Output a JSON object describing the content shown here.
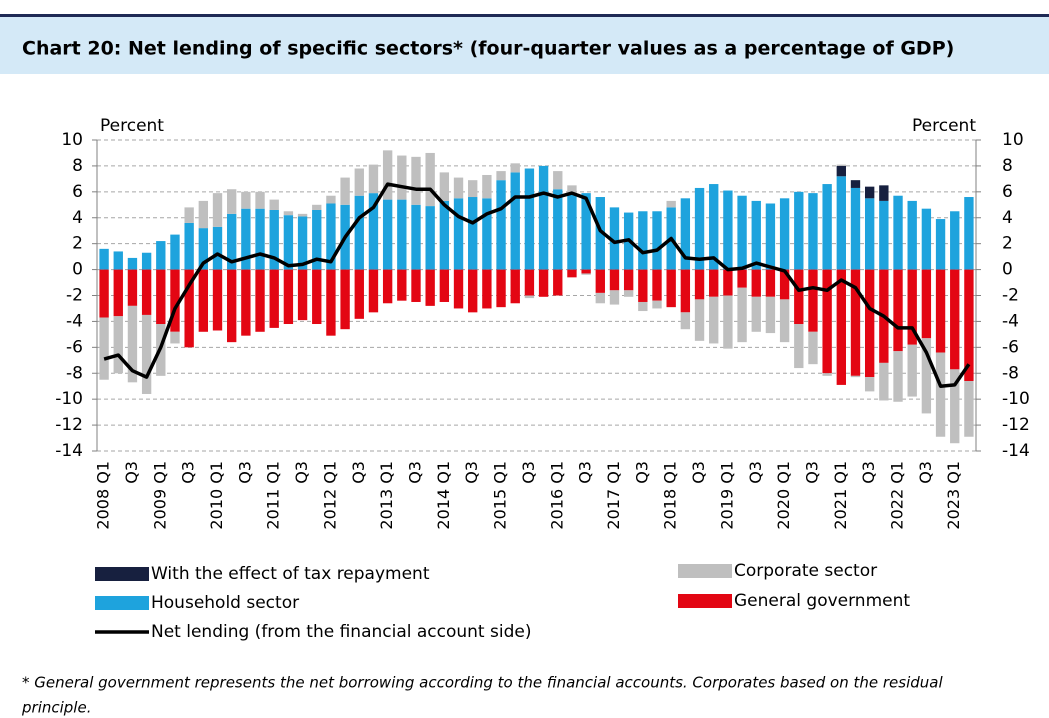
{
  "chart_data": {
    "type": "bar",
    "title": "Chart 20: Net lending of specific sectors* (four-quarter values as a percentage of GDP)",
    "y_label": "Percent",
    "y2_label": "Percent",
    "categories": [
      "2008 Q1",
      null,
      "Q3",
      null,
      "2009 Q1",
      null,
      "Q3",
      null,
      "2010 Q1",
      null,
      "Q3",
      null,
      "2011 Q1",
      null,
      "Q3",
      null,
      "2012 Q1",
      null,
      "Q3",
      null,
      "2013 Q1",
      null,
      "Q3",
      null,
      "2014 Q1",
      null,
      "Q3",
      null,
      "2015 Q1",
      null,
      "Q3",
      null,
      "2016 Q1",
      null,
      "Q3",
      null,
      "2017 Q1",
      null,
      "Q3",
      null,
      "2018 Q1",
      null,
      "Q3",
      null,
      "2019 Q1",
      null,
      "Q3",
      null,
      "2020 Q1",
      null,
      "Q3",
      null,
      "2021 Q1",
      null,
      "Q3",
      null,
      "2022 Q1",
      null,
      "Q3",
      null,
      "2023 Q1",
      null
    ],
    "series": [
      {
        "name": "With the effect of tax repayment",
        "color": "#17203f",
        "values": [
          null,
          null,
          null,
          null,
          null,
          null,
          null,
          null,
          null,
          null,
          null,
          null,
          null,
          null,
          null,
          null,
          null,
          null,
          null,
          null,
          null,
          null,
          null,
          null,
          null,
          null,
          null,
          null,
          null,
          null,
          null,
          null,
          null,
          null,
          null,
          null,
          null,
          null,
          null,
          null,
          null,
          null,
          null,
          null,
          null,
          null,
          null,
          null,
          null,
          null,
          null,
          null,
          0.8,
          0.6,
          0.9,
          1.2,
          null,
          null,
          null,
          null,
          null,
          null
        ]
      },
      {
        "name": "Household sector",
        "color": "#1ea3dd",
        "values": [
          1.6,
          1.4,
          0.9,
          1.3,
          2.2,
          2.7,
          3.6,
          3.2,
          3.3,
          4.3,
          4.7,
          4.7,
          4.6,
          4.2,
          4.1,
          4.6,
          5.1,
          5.0,
          5.7,
          5.9,
          5.4,
          5.4,
          5.0,
          4.9,
          5.3,
          5.5,
          5.6,
          5.5,
          6.9,
          7.5,
          7.8,
          8.0,
          6.2,
          5.8,
          5.9,
          5.6,
          4.8,
          4.4,
          4.5,
          4.5,
          4.8,
          5.5,
          6.3,
          6.6,
          6.1,
          5.7,
          5.3,
          5.1,
          5.5,
          6.0,
          5.9,
          6.6,
          7.2,
          6.3,
          5.5,
          5.3,
          5.7,
          5.3,
          4.7,
          3.9,
          4.5,
          5.6
        ]
      },
      {
        "name": "Corporate sector",
        "color": "#bfbfbf",
        "values": [
          -4.8,
          -4.4,
          -5.9,
          -6.1,
          -4.0,
          -0.9,
          1.2,
          2.1,
          2.6,
          1.9,
          1.3,
          1.3,
          0.8,
          0.3,
          0.2,
          0.4,
          0.6,
          2.1,
          2.1,
          2.2,
          3.8,
          3.4,
          3.7,
          4.1,
          2.2,
          1.6,
          1.3,
          1.8,
          0.7,
          0.7,
          -0.2,
          0,
          1.4,
          0.7,
          -0.1,
          -0.8,
          -1.1,
          -0.5,
          -0.7,
          -0.6,
          0.5,
          -1.3,
          -3.2,
          -3.6,
          -4.1,
          -4.2,
          -2.7,
          -2.8,
          -3.3,
          -3.4,
          -2.5,
          -0.2,
          0.1,
          -0.1,
          -1.1,
          -2.9,
          -3.9,
          -4.0,
          -5.8,
          -6.5,
          -5.7,
          -4.3
        ]
      },
      {
        "name": "General government",
        "color": "#e30613",
        "values": [
          -3.7,
          -3.6,
          -2.8,
          -3.5,
          -4.2,
          -4.8,
          -6.0,
          -4.8,
          -4.7,
          -5.6,
          -5.1,
          -4.8,
          -4.5,
          -4.2,
          -3.9,
          -4.2,
          -5.1,
          -4.6,
          -3.8,
          -3.3,
          -2.6,
          -2.4,
          -2.5,
          -2.8,
          -2.5,
          -3.0,
          -3.3,
          -3.0,
          -2.9,
          -2.6,
          -2.0,
          -2.1,
          -2.0,
          -0.6,
          -0.3,
          -1.8,
          -1.6,
          -1.6,
          -2.5,
          -2.4,
          -2.9,
          -3.3,
          -2.3,
          -2.1,
          -2.0,
          -1.4,
          -2.1,
          -2.1,
          -2.3,
          -4.2,
          -4.8,
          -8.0,
          -8.9,
          -8.2,
          -8.3,
          -7.2,
          -6.3,
          -5.8,
          -5.3,
          -6.4,
          -7.7,
          -8.6
        ]
      },
      {
        "name": "Net lending (from the financial account side)",
        "color": "#000000",
        "type": "line",
        "values": [
          -6.9,
          -6.6,
          -7.8,
          -8.3,
          -6.0,
          -3.0,
          -1.2,
          0.5,
          1.2,
          0.6,
          0.9,
          1.2,
          0.9,
          0.3,
          0.4,
          0.8,
          0.6,
          2.5,
          4.0,
          4.8,
          6.6,
          6.4,
          6.2,
          6.2,
          5.0,
          4.1,
          3.6,
          4.3,
          4.7,
          5.6,
          5.6,
          5.9,
          5.6,
          5.9,
          5.5,
          3.0,
          2.1,
          2.3,
          1.3,
          1.5,
          2.4,
          0.9,
          0.8,
          0.9,
          0.0,
          0.1,
          0.5,
          0.2,
          -0.1,
          -1.6,
          -1.4,
          -1.6,
          -0.8,
          -1.4,
          -3.0,
          -3.6,
          -4.5,
          -4.5,
          -6.4,
          -9.0,
          -8.9,
          -7.3
        ]
      }
    ],
    "ylim": [
      -14,
      10
    ],
    "yticks": [
      -14,
      -12,
      -10,
      -8,
      -6,
      -4,
      -2,
      0,
      2,
      4,
      6,
      8,
      10
    ],
    "y2lim": [
      -14,
      10
    ],
    "y2ticks": [
      -14,
      -12,
      -10,
      -8,
      -6,
      -4,
      -2,
      0,
      2,
      4,
      6,
      8,
      10
    ],
    "grid": true,
    "footnote": [
      "* General government represents the net borrowing according to the financial accounts. Corporates based on the residual",
      "principle."
    ]
  }
}
